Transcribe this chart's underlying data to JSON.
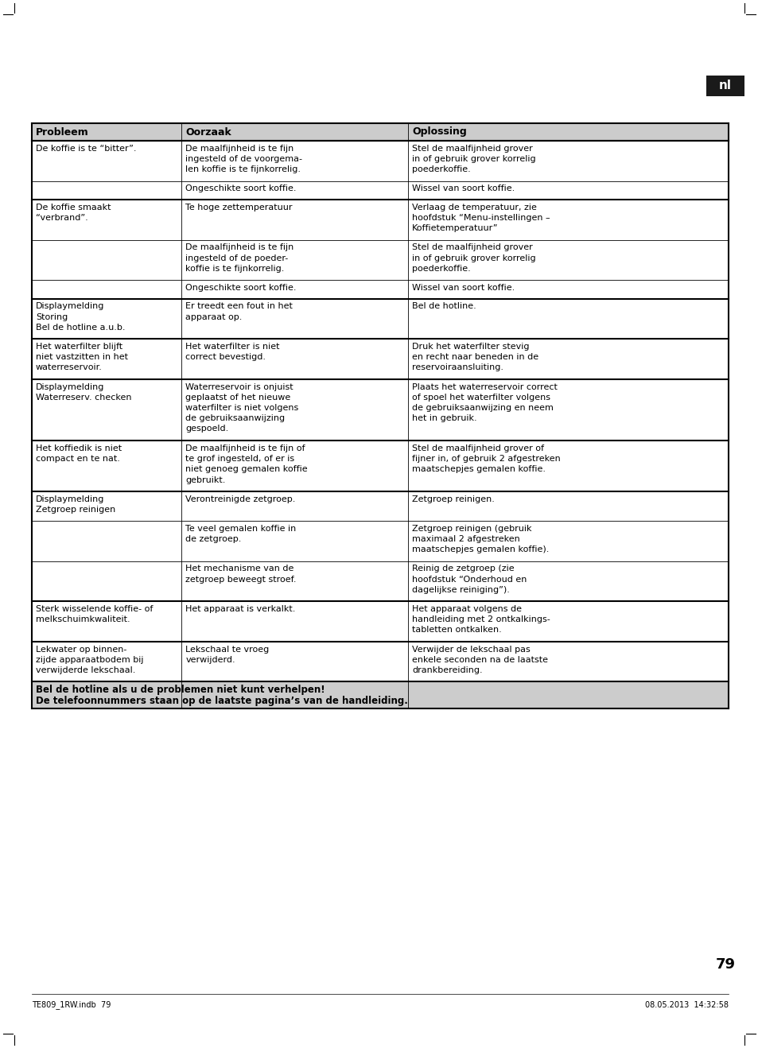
{
  "page_number": "79",
  "footer_left": "TE809_1RW.indb  79",
  "footer_right": "08.05.2013  14:32:58",
  "lang_label": "nl",
  "header_col1": "Probleem",
  "header_col2": "Oorzaak",
  "header_col3": "Oplossing",
  "table_rows": [
    {
      "col1": "De koffie is te “bitter”.",
      "col2": "De maalfijnheid is te fijn\ningesteld of de voorgema-\nlen koffie is te fijnkorrelig.",
      "col3": "Stel de maalfijnheid grover\nin of gebruik grover korrelig\npoederkoffie.",
      "thick_top": true
    },
    {
      "col1": "",
      "col2": "Ongeschikte soort koffie.",
      "col3": "Wissel van soort koffie.",
      "thick_top": false
    },
    {
      "col1": "De koffie smaakt\n“verbrand”.",
      "col2": "Te hoge zettemperatuur",
      "col3": "Verlaag de temperatuur, zie\nhoofdstuk “Menu-instellingen –\nKoffietemperatuur”",
      "thick_top": true
    },
    {
      "col1": "",
      "col2": "De maalfijnheid is te fijn\ningesteld of de poeder-\nkoffie is te fijnkorrelig.",
      "col3": "Stel de maalfijnheid grover\nin of gebruik grover korrelig\npoederkoffie.",
      "thick_top": false
    },
    {
      "col1": "",
      "col2": "Ongeschikte soort koffie.",
      "col3": "Wissel van soort koffie.",
      "thick_top": false
    },
    {
      "col1": "Displaymelding\nStoring\nBel de hotline a.u.b.",
      "col2": "Er treedt een fout in het\napparaat op.",
      "col3": "Bel de hotline.",
      "thick_top": true
    },
    {
      "col1": "Het waterfilter blijft\nniet vastzitten in het\nwaterreservoir.",
      "col2": "Het waterfilter is niet\ncorrect bevestigd.",
      "col3": "Druk het waterfilter stevig\nen recht naar beneden in de\nreservoiraansluiting.",
      "thick_top": true
    },
    {
      "col1": "Displaymelding\nWaterreserv. checken",
      "col2": "Waterreservoir is onjuist\ngeplaatst of het nieuwe\nwaterfilter is niet volgens\nde gebruiksaanwijzing\ngespoeld.",
      "col3": "Plaats het waterreservoir correct\nof spoel het waterfilter volgens\nde gebruiksaanwijzing en neem\nhet in gebruik.",
      "thick_top": true
    },
    {
      "col1": "Het koffiedik is niet\ncompact en te nat.",
      "col2": "De maalfijnheid is te fijn of\nte grof ingesteld, of er is\nniet genoeg gemalen koffie\ngebruikt.",
      "col3": "Stel de maalfijnheid grover of\nfijner in, of gebruik 2 afgestreken\nmaatschepjes gemalen koffie.",
      "thick_top": true
    },
    {
      "col1": "Displaymelding\nZetgroep reinigen",
      "col2": "Verontreinigde zetgroep.",
      "col3": "Zetgroep reinigen.",
      "thick_top": true
    },
    {
      "col1": "",
      "col2": "Te veel gemalen koffie in\nde zetgroep.",
      "col3": "Zetgroep reinigen (gebruik\nmaximaal 2 afgestreken\nmaatschepjes gemalen koffie).",
      "thick_top": false
    },
    {
      "col1": "",
      "col2": "Het mechanisme van de\nzetgroep beweegt stroef.",
      "col3": "Reinig de zetgroep (zie\nhoofdstuk “Onderhoud en\ndagelijkse reiniging”).",
      "thick_top": false
    },
    {
      "col1": "Sterk wisselende koffie- of\nmelkschuimkwaliteit.",
      "col2": "Het apparaat is verkalkt.",
      "col3": "Het apparaat volgens de\nhandleiding met 2 ontkalkings-\ntabletten ontkalken.",
      "thick_top": true
    },
    {
      "col1": "Lekwater op binnen-\nzijde apparaatbodem bij\nverwijderde lekschaal.",
      "col2": "Lekschaal te vroeg\nverwijderd.",
      "col3": "Verwijder de lekschaal pas\nenkele seconden na de laatste\ndrankbereiding.",
      "thick_top": true
    }
  ],
  "footer_note_line1": "Bel de hotline als u de problemen niet kunt verhelpen!",
  "footer_note_line2": "De telefoonnummers staan op de laatste pagina’s van de handleiding.",
  "bg_color": "#ffffff",
  "header_bg": "#cccccc",
  "footer_note_bg": "#cccccc",
  "text_color": "#000000",
  "font_size": 8.0,
  "header_font_size": 9.0
}
